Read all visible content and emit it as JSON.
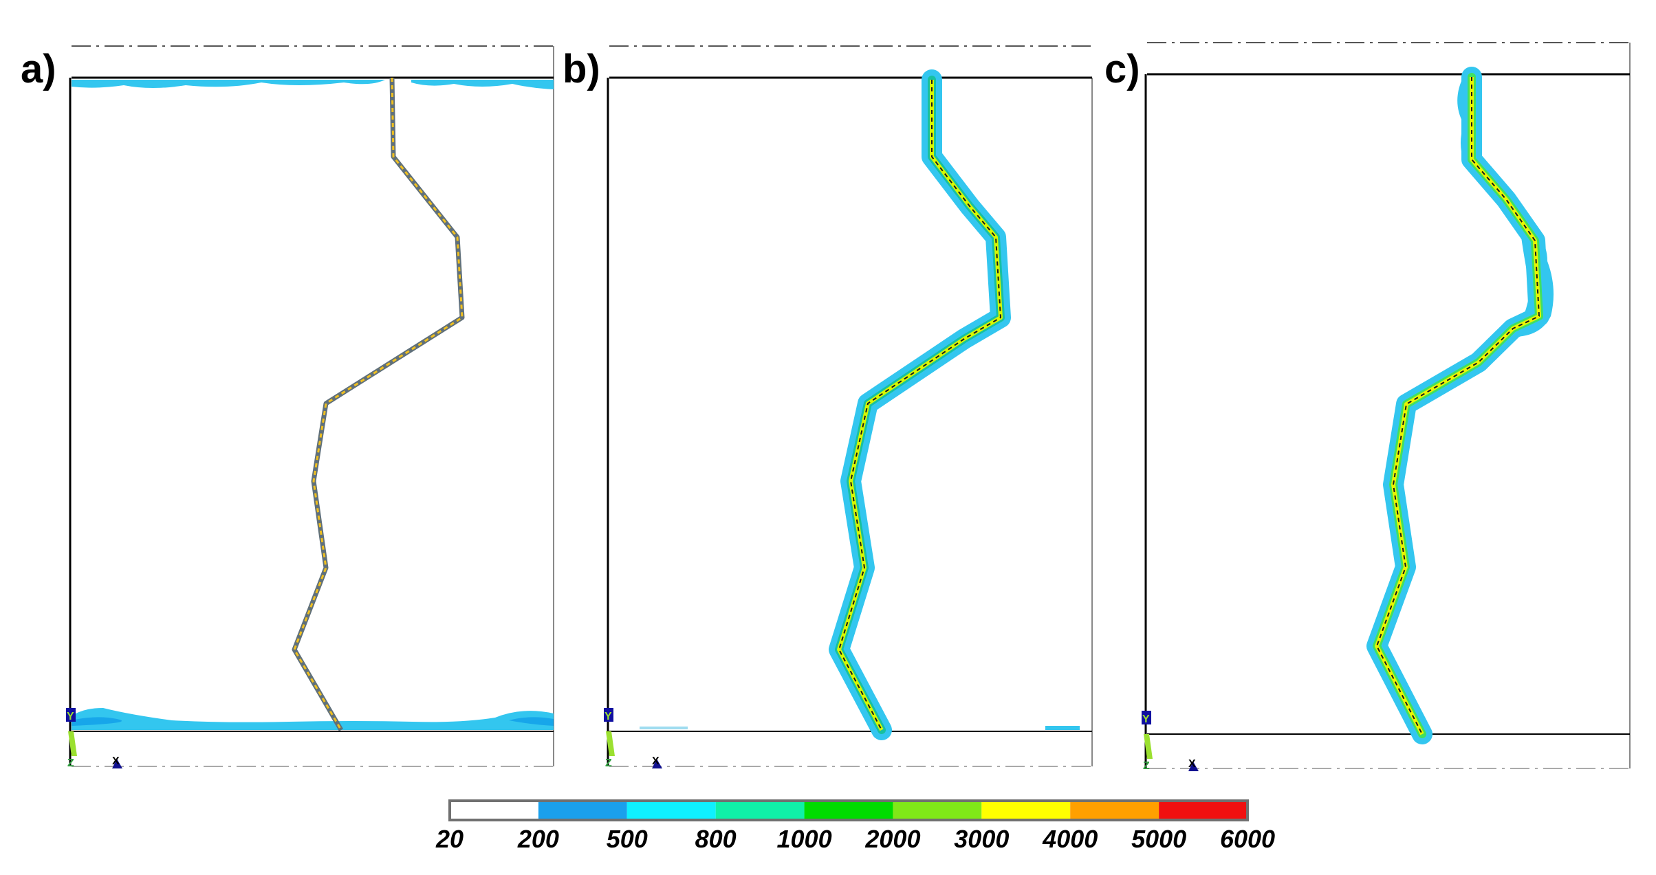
{
  "panels": [
    {
      "label": "a)"
    },
    {
      "label": "b)"
    },
    {
      "label": "c)"
    }
  ],
  "axis_triad": {
    "y_letter": "Y",
    "x_letter": "X",
    "z_letter": "Z"
  },
  "colorbar": {
    "ticks": [
      "20",
      "200",
      "500",
      "800",
      "1000",
      "2000",
      "3000",
      "4000",
      "5000",
      "6000"
    ],
    "colors": [
      "#ffffff",
      "#1aa0ec",
      "#0ff0ff",
      "#10f0a8",
      "#00dc00",
      "#80e818",
      "#ffff00",
      "#ffa000",
      "#f01010"
    ]
  },
  "colors": {
    "crack_light": "#33c6ef",
    "crack_mid": "#17a6ea",
    "crack_core_b": "#d6f700",
    "crack_core_c": "#e8f500",
    "crack_a_outline": "#60707a",
    "frame": "#000000"
  }
}
